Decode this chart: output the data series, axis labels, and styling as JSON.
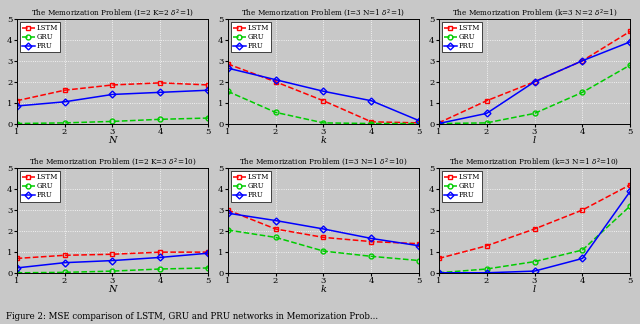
{
  "titles": [
    "The Memorization Problem (I=2 K=2 $\\delta^2$=1)",
    "The Memorization Problem (I=3 N=1 $\\delta^2$=1)",
    "The Memorization Problem (k=3 N=2 $\\delta^2$=1)",
    "The Memorization Problem (I=2 K=3 $\\delta^2$=10)",
    "The Memorization Problem (I=3 N=1 $\\delta^2$=10)",
    "The Memorization Problem (k=3 N=1 $\\delta^2$=10)"
  ],
  "xlabels": [
    "N",
    "k",
    "l",
    "N",
    "k",
    "l"
  ],
  "lstm_data": [
    [
      1.1,
      1.6,
      1.85,
      1.95,
      1.85
    ],
    [
      2.85,
      2.0,
      1.1,
      0.1,
      0.05
    ],
    [
      0.05,
      1.1,
      2.0,
      3.0,
      4.4
    ],
    [
      0.7,
      0.85,
      0.9,
      1.0,
      1.0
    ],
    [
      3.0,
      2.1,
      1.7,
      1.5,
      1.4
    ],
    [
      0.7,
      1.3,
      2.1,
      3.0,
      4.2
    ]
  ],
  "gru_data": [
    [
      0.02,
      0.05,
      0.12,
      0.22,
      0.28
    ],
    [
      1.55,
      0.55,
      0.05,
      0.02,
      0.02
    ],
    [
      0.02,
      0.05,
      0.5,
      1.5,
      2.8
    ],
    [
      0.02,
      0.04,
      0.1,
      0.2,
      0.25
    ],
    [
      2.05,
      1.7,
      1.05,
      0.8,
      0.6
    ],
    [
      0.02,
      0.2,
      0.55,
      1.1,
      3.2
    ]
  ],
  "pru_data": [
    [
      0.85,
      1.05,
      1.4,
      1.5,
      1.6
    ],
    [
      2.65,
      2.1,
      1.55,
      1.1,
      0.15
    ],
    [
      0.02,
      0.5,
      2.0,
      3.0,
      3.9
    ],
    [
      0.25,
      0.5,
      0.6,
      0.75,
      0.95
    ],
    [
      2.85,
      2.5,
      2.1,
      1.65,
      1.3
    ],
    [
      0.02,
      0.02,
      0.1,
      0.7,
      3.9
    ]
  ],
  "lstm_color": "#FF0000",
  "gru_color": "#00CC00",
  "pru_color": "#0000FF",
  "ax_bg": "#C8C8C8",
  "fig_bg": "#C8C8C8",
  "caption": "Figure 2: MSE comparison of LSTM, GRU and PRU networks in Memorization Prob..."
}
